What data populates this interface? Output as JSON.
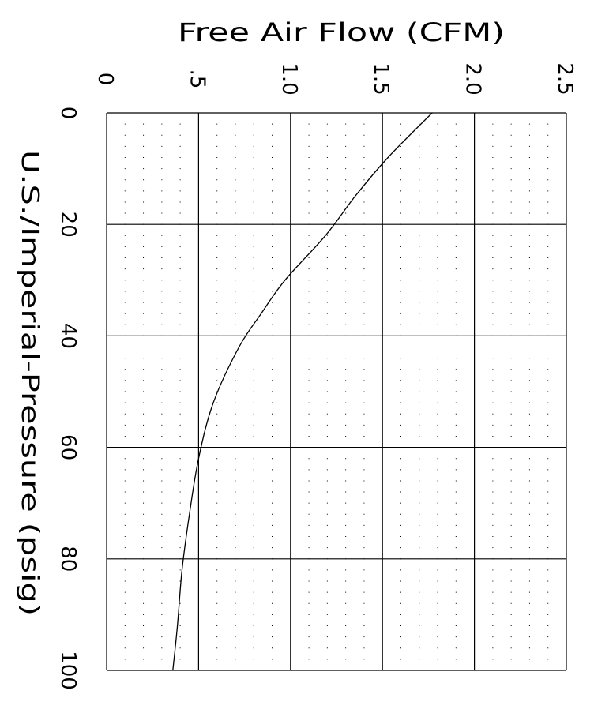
{
  "chart_data": {
    "type": "line",
    "title": "",
    "xlabel": "Free Air Flow (CFM)",
    "ylabel": "U.S./Imperial-Pressure (psig)",
    "x_ticks": [
      "0",
      ".5",
      "1.0",
      "1.5",
      "2.0",
      "2.5"
    ],
    "y_ticks": [
      "0",
      "20",
      "40",
      "60",
      "80",
      "100"
    ],
    "xlim": [
      0,
      2.5
    ],
    "ylim": [
      0,
      100
    ],
    "grid": "major solid lines, minor dotted points",
    "series": [
      {
        "color": "#000000",
        "points": [
          {
            "x": 1.77,
            "y": 0
          },
          {
            "x": 1.53,
            "y": 8
          },
          {
            "x": 1.35,
            "y": 15
          },
          {
            "x": 1.19,
            "y": 22
          },
          {
            "x": 0.97,
            "y": 30
          },
          {
            "x": 0.84,
            "y": 36
          },
          {
            "x": 0.72,
            "y": 42
          },
          {
            "x": 0.58,
            "y": 52
          },
          {
            "x": 0.5,
            "y": 62
          },
          {
            "x": 0.45,
            "y": 72
          },
          {
            "x": 0.41,
            "y": 82
          },
          {
            "x": 0.385,
            "y": 92
          },
          {
            "x": 0.36,
            "y": 100
          }
        ]
      }
    ]
  }
}
